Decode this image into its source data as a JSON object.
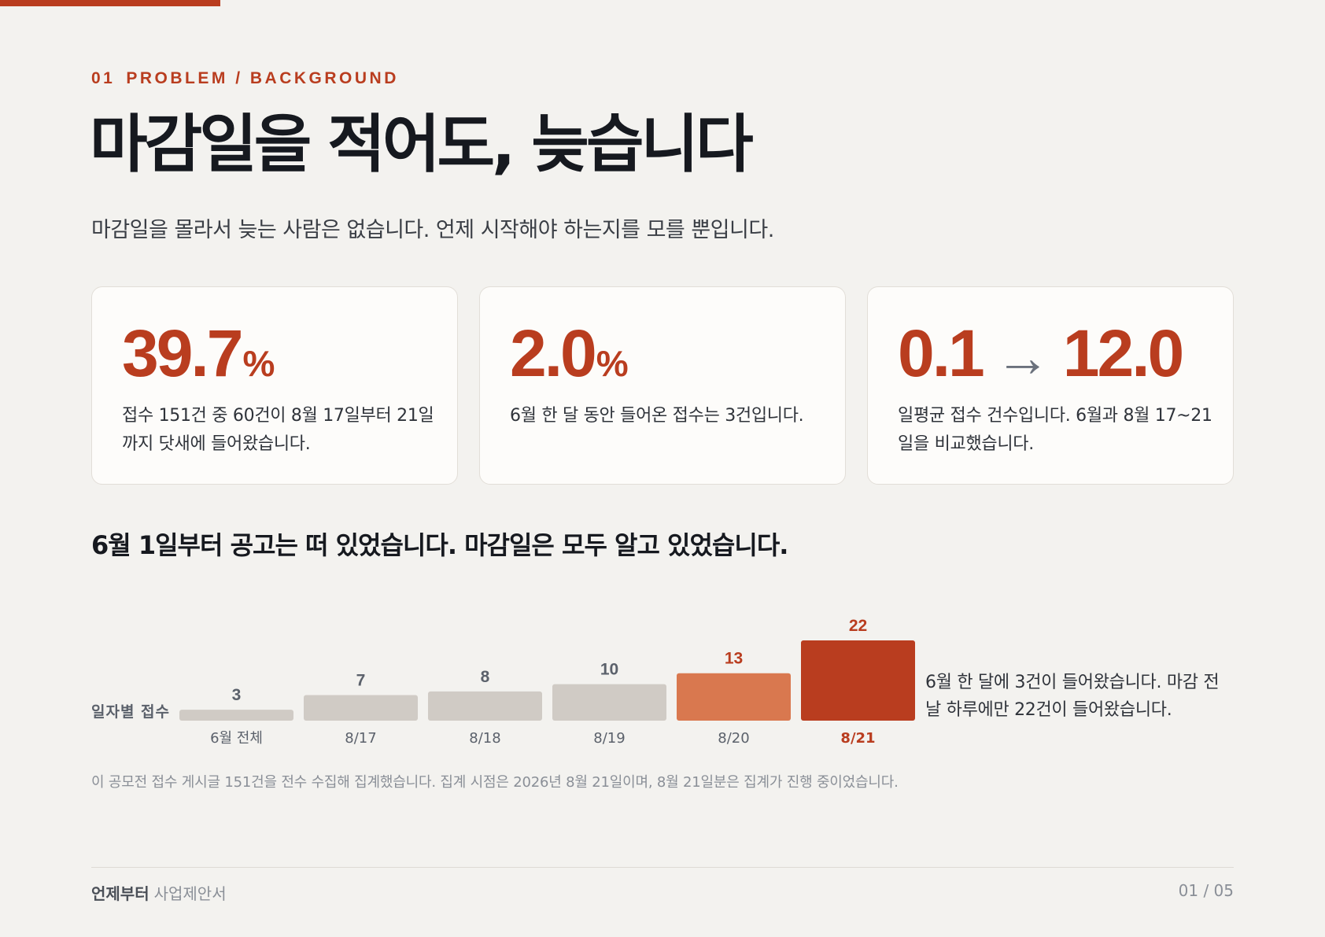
{
  "header": {
    "section_number": "01",
    "section_label": "PROBLEM / BACKGROUND",
    "title": "마감일을 적어도, 늦습니다",
    "subtitle": "마감일을 몰라서 늦는 사람은 없습니다. 언제 시작해야 하는지를 모를 뿐입니다."
  },
  "cards": [
    {
      "value": "39.7",
      "unit": "%",
      "desc": "접수 151건 중 60건이 8월 17일부터 21일까지 닷새에 들어왔습니다."
    },
    {
      "value": "2.0",
      "unit": "%",
      "desc": "6월 한 달 동안 들어온 접수는 3건입니다."
    },
    {
      "from": "0.1",
      "to": "12.0",
      "desc": "일평균 접수 건수입니다. 6월과 8월 17~21일을 비교했습니다."
    }
  ],
  "chart_heading": "6월 1일부터 공고는 떠 있었습니다. 마감일은 모두 알고 있었습니다.",
  "chart_data": {
    "type": "bar",
    "ylabel": "일자별 접수",
    "categories": [
      "6월 전체",
      "8/17",
      "8/18",
      "8/19",
      "8/20",
      "8/21"
    ],
    "values": [
      3,
      7,
      8,
      10,
      13,
      22
    ],
    "highlight": {
      "8/20": "#d9784f",
      "8/21": "#b93d1f"
    },
    "default_color": "#d0cbc5",
    "grid": false,
    "legend": "none"
  },
  "chart_note": "6월 한 달에 3건이 들어왔습니다. 마감 전날 하루에만 22건이 들어왔습니다.",
  "footnote": "이 공모전 접수 게시글 151건을 전수 수집해 집계했습니다. 집계 시점은 2026년 8월 21일이며, 8월 21일분은 집계가 진행 중이었습니다.",
  "footer": {
    "brand": "언제부터",
    "doc_type": "사업제안서",
    "page": "01 / 05"
  },
  "colors": {
    "accent": "#b93d1f",
    "accent_light": "#d9784f",
    "neutral_bar": "#d0cbc5",
    "background": "#f3f2ef"
  },
  "icons": {
    "arrow": "right-arrow-icon"
  }
}
